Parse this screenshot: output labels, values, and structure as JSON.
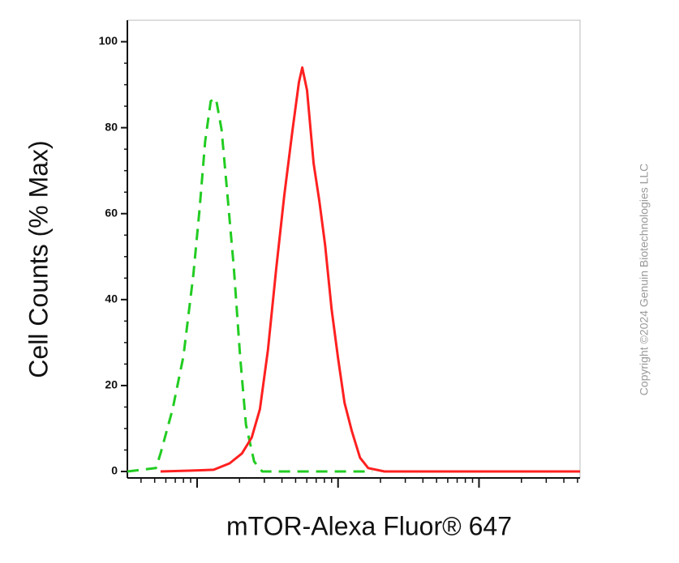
{
  "chart_data": {
    "type": "line",
    "x_label": "mTOR-Alexa Fluor® 647",
    "y_label": "Cell Counts (% Max)",
    "watermark": "Copyright ©2024 Genuin Biotechnologies LLC",
    "x_scale": "log",
    "xlim": [
      32,
      52100
    ],
    "xticks": [
      100,
      1000,
      10000
    ],
    "ylim": [
      -1.5,
      105
    ],
    "yticks": [
      0,
      20,
      40,
      60,
      80,
      100
    ],
    "series": [
      {
        "color": "#22cc22",
        "dashed": true,
        "x": [
          32,
          51,
          55,
          67,
          80,
          94,
          104,
          114,
          125,
          136,
          149,
          164,
          182,
          202,
          222,
          254,
          290,
          354,
          1750
        ],
        "values": [
          0,
          0.8,
          4.2,
          14.5,
          26.8,
          45.7,
          60.8,
          76.8,
          86.2,
          86.8,
          79.6,
          64.5,
          47.5,
          26.8,
          10.9,
          2.3,
          0,
          0,
          0
        ]
      },
      {
        "color": "#ff2020",
        "dashed": false,
        "x": [
          55,
          88,
          131,
          170,
          208,
          244,
          279,
          318,
          364,
          415,
          474,
          528,
          557,
          603,
          671,
          736,
          809,
          900,
          1000,
          1112,
          1253,
          1432,
          1637,
          2135,
          52100
        ],
        "values": [
          0,
          0.2,
          0.4,
          1.9,
          4.2,
          7.9,
          14.5,
          28.3,
          47.2,
          64.2,
          79.2,
          90.6,
          94,
          88.7,
          71.7,
          63.0,
          52.8,
          37.7,
          26.4,
          16.0,
          9.4,
          3.2,
          0.8,
          0,
          0
        ]
      }
    ]
  }
}
